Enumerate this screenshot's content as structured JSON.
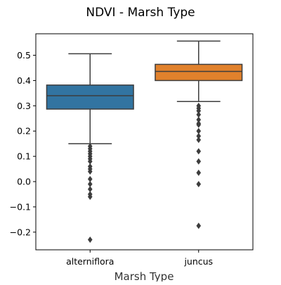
{
  "chart_data": {
    "type": "box",
    "title": "NDVI - Marsh Type",
    "xlabel": "Marsh Type",
    "ylabel": "",
    "ylim": [
      -0.27,
      0.585
    ],
    "yticks": [
      -0.2,
      -0.1,
      0.0,
      0.1,
      0.2,
      0.3,
      0.4,
      0.5
    ],
    "ytick_labels": [
      "−0.2",
      "−0.1",
      "0.0",
      "0.1",
      "0.2",
      "0.3",
      "0.4",
      "0.5"
    ],
    "grid": false,
    "categories": [
      "alterniflora",
      "juncus"
    ],
    "boxes": [
      {
        "category": "alterniflora",
        "color": "#3274a1",
        "q1": 0.287,
        "median": 0.34,
        "q3": 0.382,
        "whisker_low": 0.15,
        "whisker_high": 0.506,
        "outliers": [
          0.14,
          0.13,
          0.12,
          0.11,
          0.1,
          0.09,
          0.08,
          0.06,
          0.05,
          0.04,
          0.01,
          -0.01,
          -0.03,
          -0.05,
          -0.06,
          -0.23
        ]
      },
      {
        "category": "juncus",
        "color": "#e1812c",
        "q1": 0.4,
        "median": 0.436,
        "q3": 0.464,
        "whisker_low": 0.317,
        "whisker_high": 0.556,
        "outliers": [
          0.3,
          0.29,
          0.28,
          0.265,
          0.245,
          0.23,
          0.225,
          0.2,
          0.18,
          0.165,
          0.12,
          0.08,
          0.035,
          -0.01,
          -0.175
        ]
      }
    ]
  }
}
